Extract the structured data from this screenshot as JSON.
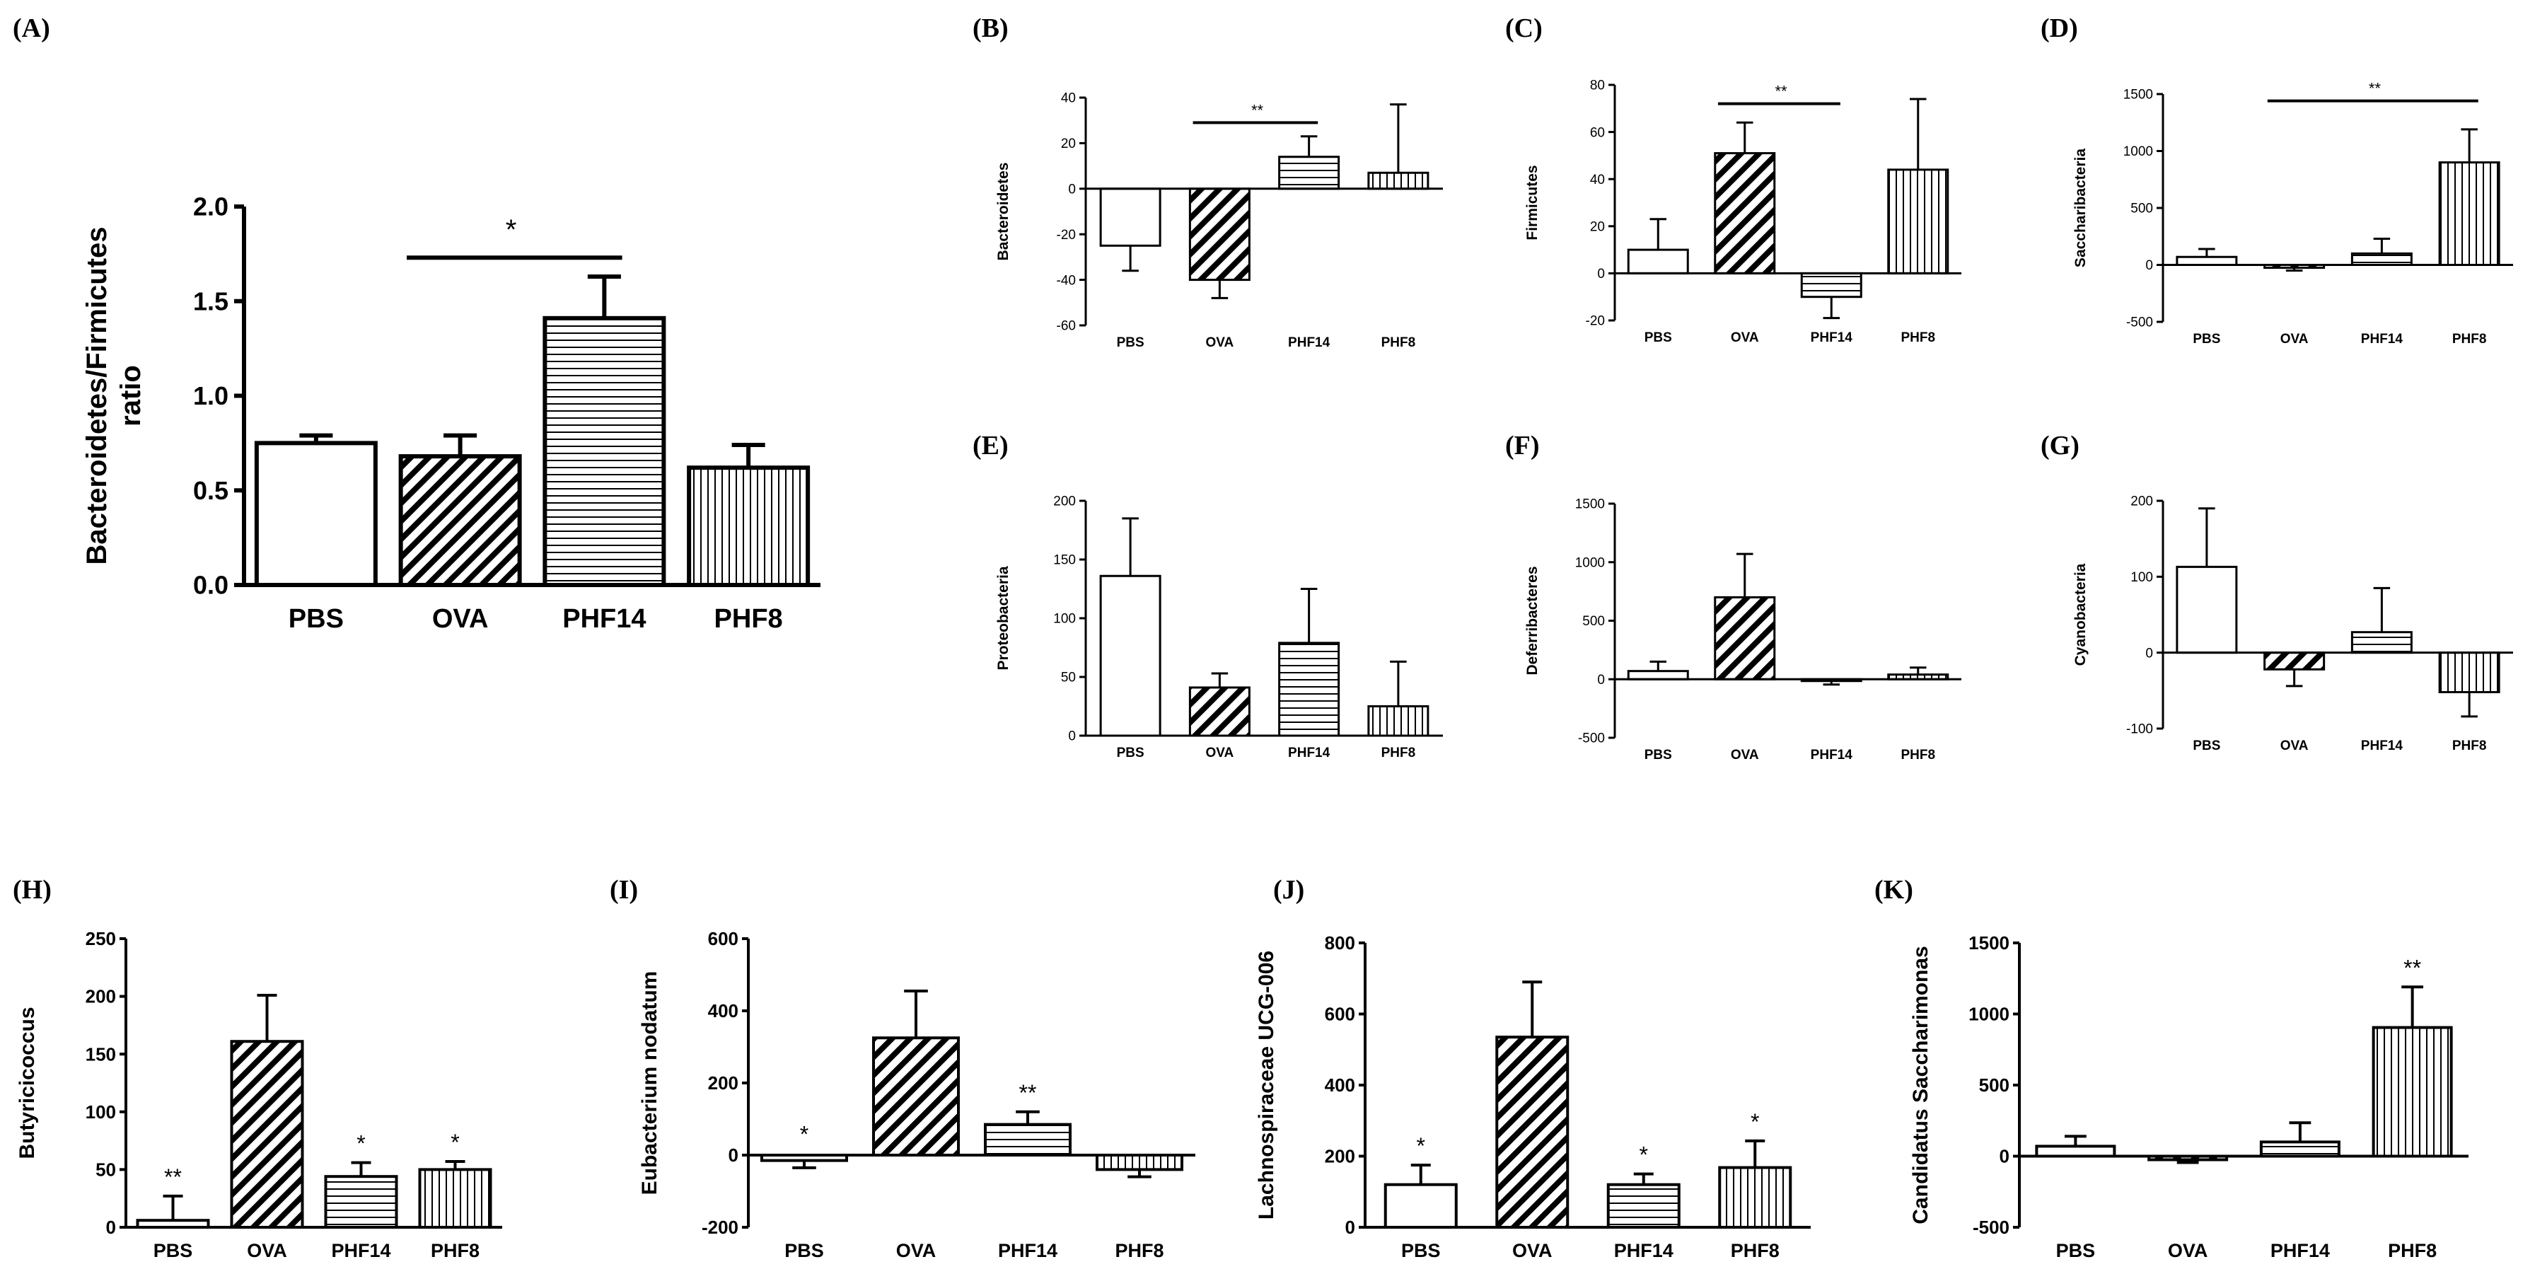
{
  "figure": {
    "categories": [
      "PBS",
      "OVA",
      "PHF14",
      "PHF8"
    ],
    "patterns": [
      "none",
      "diagonal",
      "horizontal",
      "vertical"
    ]
  },
  "chart_data": [
    {
      "panel": "(A)",
      "type": "bar",
      "ylabel": "Bacteroidetes/Firmicutes ratio",
      "categories": [
        "PBS",
        "OVA",
        "PHF14",
        "PHF8"
      ],
      "values": [
        0.75,
        0.68,
        1.41,
        0.62
      ],
      "errors": [
        0.04,
        0.11,
        0.22,
        0.12
      ],
      "ylim": [
        0,
        2.0
      ],
      "yticks": [
        0,
        0.5,
        1.0,
        1.5,
        2.0
      ],
      "ytick_labels": [
        "0.0",
        "0.5",
        "1.0",
        "1.5",
        "2.0"
      ],
      "bracket": {
        "from": 1,
        "to": 2,
        "y": 1.73,
        "label": "*"
      },
      "marks": [
        "",
        "",
        "",
        ""
      ]
    },
    {
      "panel": "(B)",
      "type": "bar",
      "ylabel": "Bacteroidetes",
      "categories": [
        "PBS",
        "OVA",
        "PHF14",
        "PHF8"
      ],
      "values": [
        -25,
        -40,
        14,
        7
      ],
      "errors": [
        11,
        8,
        9,
        30
      ],
      "ylim": [
        -60,
        40
      ],
      "yticks": [
        -60,
        -40,
        -20,
        0,
        20,
        40
      ],
      "ytick_labels": [
        "-60",
        "-40",
        "-20",
        "0",
        "20",
        "40"
      ],
      "bracket": {
        "from": 1,
        "to": 2,
        "y": 29,
        "label": "**"
      },
      "marks": [
        "",
        "",
        "",
        ""
      ]
    },
    {
      "panel": "(C)",
      "type": "bar",
      "ylabel": "Firmicutes",
      "categories": [
        "PBS",
        "OVA",
        "PHF14",
        "PHF8"
      ],
      "values": [
        10,
        51,
        -10,
        44
      ],
      "errors": [
        13,
        13,
        9,
        30
      ],
      "ylim": [
        -20,
        80
      ],
      "yticks": [
        -20,
        0,
        20,
        40,
        60,
        80
      ],
      "ytick_labels": [
        "-20",
        "0",
        "20",
        "40",
        "60",
        "80"
      ],
      "bracket": {
        "from": 1,
        "to": 2,
        "y": 72,
        "label": "**"
      },
      "marks": [
        "",
        "",
        "",
        ""
      ]
    },
    {
      "panel": "(D)",
      "type": "bar",
      "ylabel": "Saccharibacteria",
      "categories": [
        "PBS",
        "OVA",
        "PHF14",
        "PHF8"
      ],
      "values": [
        70,
        -25,
        100,
        900
      ],
      "errors": [
        70,
        25,
        130,
        290
      ],
      "ylim": [
        -500,
        1500
      ],
      "yticks": [
        -500,
        0,
        500,
        1000,
        1500
      ],
      "ytick_labels": [
        "-500",
        "0",
        "500",
        "1000",
        "1500"
      ],
      "bracket": {
        "from": 1,
        "to": 3,
        "y": 1440,
        "label": "**"
      },
      "marks": [
        "",
        "",
        "",
        ""
      ]
    },
    {
      "panel": "(E)",
      "type": "bar",
      "ylabel": "Proteobacteria",
      "categories": [
        "PBS",
        "OVA",
        "PHF14",
        "PHF8"
      ],
      "values": [
        136,
        41,
        79,
        25
      ],
      "errors": [
        49,
        12,
        46,
        38
      ],
      "ylim": [
        0,
        200
      ],
      "yticks": [
        0,
        50,
        100,
        150,
        200
      ],
      "ytick_labels": [
        "0",
        "50",
        "100",
        "150",
        "200"
      ],
      "marks": [
        "",
        "",
        "",
        ""
      ]
    },
    {
      "panel": "(F)",
      "type": "bar",
      "ylabel": "Deferribacteres",
      "categories": [
        "PBS",
        "OVA",
        "PHF14",
        "PHF8"
      ],
      "values": [
        70,
        700,
        -15,
        40
      ],
      "errors": [
        80,
        370,
        30,
        60
      ],
      "ylim": [
        -500,
        1500
      ],
      "yticks": [
        -500,
        0,
        500,
        1000,
        1500
      ],
      "ytick_labels": [
        "-500",
        "0",
        "500",
        "1000",
        "1500"
      ],
      "marks": [
        "",
        "",
        "",
        ""
      ]
    },
    {
      "panel": "(G)",
      "type": "bar",
      "ylabel": "Cyanobacteria",
      "categories": [
        "PBS",
        "OVA",
        "PHF14",
        "PHF8"
      ],
      "values": [
        113,
        -22,
        27,
        -52
      ],
      "errors": [
        77,
        22,
        58,
        32
      ],
      "ylim": [
        -100,
        200
      ],
      "yticks": [
        -100,
        0,
        100,
        200
      ],
      "ytick_labels": [
        "-100",
        "0",
        "100",
        "200"
      ],
      "marks": [
        "",
        "",
        "",
        ""
      ]
    },
    {
      "panel": "(H)",
      "type": "bar",
      "ylabel": "Butyricicoccus",
      "categories": [
        "PBS",
        "OVA",
        "PHF14",
        "PHF8"
      ],
      "values": [
        6,
        161,
        44,
        50
      ],
      "errors": [
        21,
        40,
        12,
        7
      ],
      "ylim": [
        0,
        250
      ],
      "yticks": [
        0,
        50,
        100,
        150,
        200,
        250
      ],
      "ytick_labels": [
        "0",
        "50",
        "100",
        "150",
        "200",
        "250"
      ],
      "marks": [
        "**",
        "",
        "*",
        "*"
      ]
    },
    {
      "panel": "(I)",
      "type": "bar",
      "ylabel": "Eubacterium nodatum",
      "categories": [
        "PBS",
        "OVA",
        "PHF14",
        "PHF8"
      ],
      "values": [
        -15,
        325,
        85,
        -40
      ],
      "errors": [
        20,
        130,
        35,
        20
      ],
      "ylim": [
        -200,
        600
      ],
      "yticks": [
        -200,
        0,
        200,
        400,
        600
      ],
      "ytick_labels": [
        "-200",
        "0",
        "200",
        "400",
        "600"
      ],
      "marks": [
        "*",
        "",
        "**",
        ""
      ]
    },
    {
      "panel": "(J)",
      "type": "bar",
      "ylabel": "Lachnospiraceae UCG-006",
      "categories": [
        "PBS",
        "OVA",
        "PHF14",
        "PHF8"
      ],
      "values": [
        120,
        535,
        120,
        168
      ],
      "errors": [
        55,
        155,
        30,
        75
      ],
      "ylim": [
        0,
        800
      ],
      "yticks": [
        0,
        200,
        400,
        600,
        800
      ],
      "ytick_labels": [
        "0",
        "200",
        "400",
        "600",
        "800"
      ],
      "marks": [
        "*",
        "",
        "*",
        "*"
      ]
    },
    {
      "panel": "(K)",
      "type": "bar",
      "ylabel": "Candidatus Saccharimonas",
      "categories": [
        "PBS",
        "OVA",
        "PHF14",
        "PHF8"
      ],
      "values": [
        70,
        -25,
        100,
        905
      ],
      "errors": [
        70,
        20,
        135,
        285
      ],
      "ylim": [
        -500,
        1500
      ],
      "yticks": [
        -500,
        0,
        500,
        1000,
        1500
      ],
      "ytick_labels": [
        "-500",
        "0",
        "500",
        "1000",
        "1500"
      ],
      "marks": [
        "",
        "",
        "",
        "**"
      ]
    }
  ]
}
